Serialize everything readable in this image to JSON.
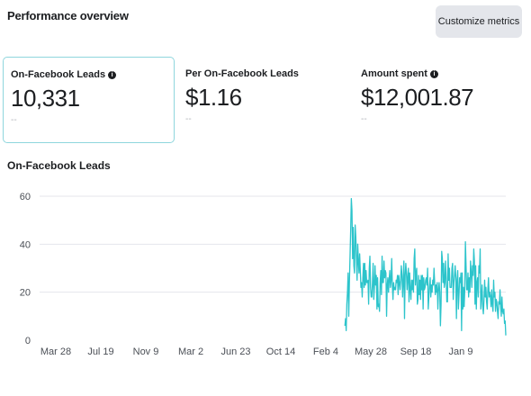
{
  "header": {
    "title": "Performance overview",
    "customize_label": "Customize metrics"
  },
  "metrics": [
    {
      "label": "On-Facebook Leads",
      "value": "10,331",
      "delta": "--",
      "info_icon": "info-icon",
      "selected": true
    },
    {
      "label": "Per On-Facebook Leads",
      "value": "$1.16",
      "delta": "--",
      "selected": false
    },
    {
      "label": "Amount spent",
      "value": "$12,001.87",
      "delta": "--",
      "info_icon": "info-icon",
      "selected": false
    }
  ],
  "colors": {
    "series": "#2cc4cb",
    "selected_border": "#8fd6dd",
    "grid": "#e4e6eb"
  },
  "chart_data": {
    "type": "line",
    "title": "On-Facebook Leads",
    "xlabel": "",
    "ylabel": "",
    "ylim": [
      0,
      60
    ],
    "yticks": [
      0,
      20,
      40,
      60
    ],
    "grid": true,
    "x_tick_labels": [
      "Mar 28",
      "Jul 19",
      "Nov 9",
      "Mar 2",
      "Jun 23",
      "Oct 14",
      "Feb 4",
      "May 28",
      "Sep 18",
      "Jan 9"
    ],
    "x_tick_spacing_days": 113,
    "x_axis_origin_tick": "Mar 28",
    "series": [
      {
        "name": "On-Facebook Leads",
        "data_start_offset_days": 726,
        "values": [
          6,
          9,
          4,
          15,
          20,
          28,
          10,
          24,
          35,
          46,
          59,
          54,
          34,
          47,
          31,
          28,
          48,
          43,
          34,
          25,
          40,
          33,
          28,
          36,
          29,
          22,
          24,
          18,
          26,
          32,
          22,
          32,
          23,
          29,
          24,
          24,
          25,
          15,
          30,
          35,
          22,
          18,
          18,
          24,
          32,
          17,
          22,
          31,
          23,
          27,
          13,
          26,
          14,
          15,
          12,
          24,
          29,
          19,
          35,
          24,
          24,
          33,
          26,
          29,
          28,
          10,
          23,
          26,
          20,
          25,
          29,
          22,
          25,
          34,
          23,
          17,
          24,
          21,
          22,
          21,
          25,
          24,
          27,
          19,
          27,
          24,
          21,
          25,
          31,
          27,
          18,
          25,
          33,
          9,
          27,
          32,
          28,
          21,
          26,
          30,
          16,
          28,
          21,
          17,
          25,
          21,
          25,
          20,
          34,
          38,
          23,
          28,
          30,
          15,
          17,
          27,
          19,
          25,
          17,
          27,
          21,
          27,
          13,
          26,
          21,
          22,
          25,
          26,
          23,
          30,
          13,
          18,
          23,
          26,
          18,
          23,
          20,
          25,
          23,
          30,
          24,
          19,
          23,
          20,
          24,
          13,
          21,
          24,
          20,
          6,
          15,
          37,
          34,
          24,
          32,
          22,
          24,
          33,
          26,
          16,
          16,
          36,
          25,
          30,
          22,
          22,
          22,
          30,
          32,
          17,
          24,
          27,
          31,
          26,
          9,
          25,
          29,
          13,
          19,
          26,
          24,
          28,
          4,
          28,
          13,
          22,
          14,
          21,
          41,
          31,
          21,
          21,
          28,
          18,
          26,
          20,
          33,
          28,
          22,
          31,
          27,
          38,
          33,
          15,
          31,
          13,
          24,
          26,
          18,
          31,
          28,
          38,
          13,
          18,
          23,
          14,
          11,
          17,
          25,
          18,
          22,
          16,
          13,
          21,
          26,
          18,
          20,
          18,
          14,
          21,
          15,
          12,
          25,
          18,
          20,
          12,
          17,
          16,
          12,
          9,
          16,
          15,
          21,
          14,
          10,
          18,
          12,
          11,
          13,
          7,
          8,
          2
        ]
      }
    ]
  }
}
